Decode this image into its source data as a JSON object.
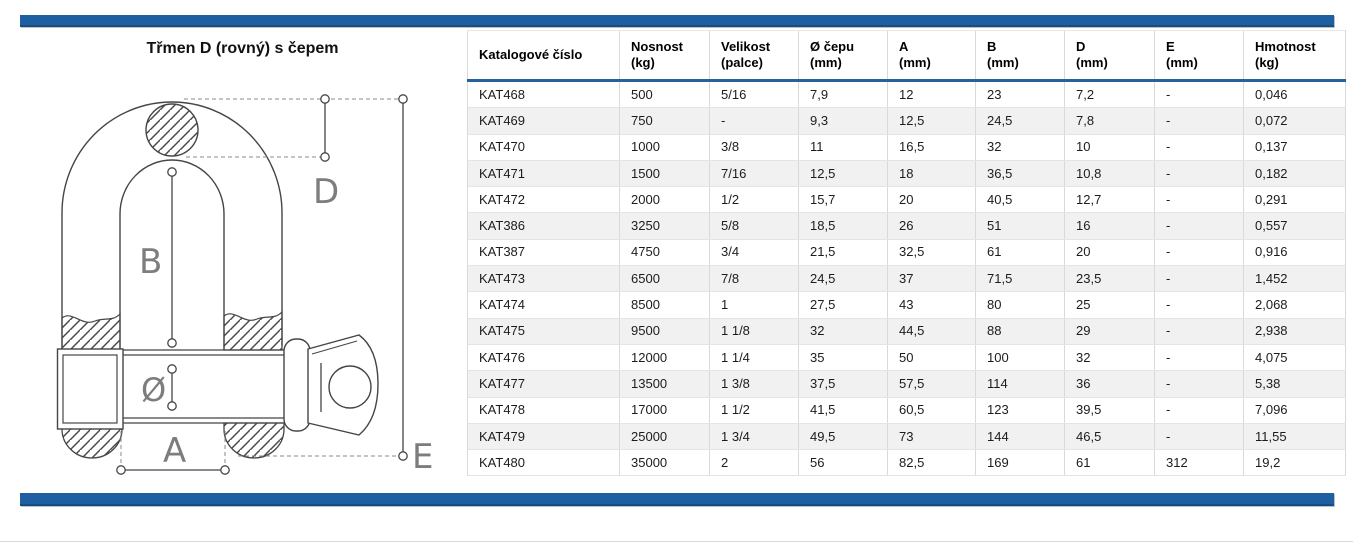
{
  "page": {
    "title": "Třmen D (rovný) s čepem"
  },
  "colors": {
    "accent_blue": "#1d5fa1",
    "table_header_rule": "#26639c",
    "row_stripe": "#f1f1f1",
    "drawing_line": "#454545",
    "dim_label_gray": "#7d7d7d"
  },
  "diagram": {
    "description": "technical line drawing of a D shackle with screw pin, hatched cross-sections and dimension lines",
    "dim_labels": {
      "d": "D",
      "b": "B",
      "diameter": "Ø",
      "a": "A",
      "e": "E"
    }
  },
  "table": {
    "headers": [
      "Katalogové číslo",
      "Nosnost\n(kg)",
      "Velikost\n(palce)",
      "Ø čepu\n(mm)",
      "A\n(mm)",
      "B\n(mm)",
      "D\n(mm)",
      "E\n(mm)",
      "Hmotnost\n(kg)"
    ],
    "rows": [
      [
        "KAT468",
        "500",
        "5/16",
        "7,9",
        "12",
        "23",
        "7,2",
        "-",
        "0,046"
      ],
      [
        "KAT469",
        "750",
        "-",
        "9,3",
        "12,5",
        "24,5",
        "7,8",
        "-",
        "0,072"
      ],
      [
        "KAT470",
        "1000",
        "3/8",
        "11",
        "16,5",
        "32",
        "10",
        "-",
        "0,137"
      ],
      [
        "KAT471",
        "1500",
        "7/16",
        "12,5",
        "18",
        "36,5",
        "10,8",
        "-",
        "0,182"
      ],
      [
        "KAT472",
        "2000",
        "1/2",
        "15,7",
        "20",
        "40,5",
        "12,7",
        "-",
        "0,291"
      ],
      [
        "KAT386",
        "3250",
        "5/8",
        "18,5",
        "26",
        "51",
        "16",
        "-",
        "0,557"
      ],
      [
        "KAT387",
        "4750",
        "3/4",
        "21,5",
        "32,5",
        "61",
        "20",
        "-",
        "0,916"
      ],
      [
        "KAT473",
        "6500",
        "7/8",
        "24,5",
        "37",
        "71,5",
        "23,5",
        "-",
        "1,452"
      ],
      [
        "KAT474",
        "8500",
        "1",
        "27,5",
        "43",
        "80",
        "25",
        "-",
        "2,068"
      ],
      [
        "KAT475",
        "9500",
        "1 1/8",
        "32",
        "44,5",
        "88",
        "29",
        "-",
        "2,938"
      ],
      [
        "KAT476",
        "12000",
        "1 1/4",
        "35",
        "50",
        "100",
        "32",
        "-",
        "4,075"
      ],
      [
        "KAT477",
        "13500",
        "1 3/8",
        "37,5",
        "57,5",
        "114",
        "36",
        "-",
        "5,38"
      ],
      [
        "KAT478",
        "17000",
        "1 1/2",
        "41,5",
        "60,5",
        "123",
        "39,5",
        "-",
        "7,096"
      ],
      [
        "KAT479",
        "25000",
        "1 3/4",
        "49,5",
        "73",
        "144",
        "46,5",
        "-",
        "11,55"
      ],
      [
        "KAT480",
        "35000",
        "2",
        "56",
        "82,5",
        "169",
        "61",
        "312",
        "19,2"
      ]
    ]
  }
}
